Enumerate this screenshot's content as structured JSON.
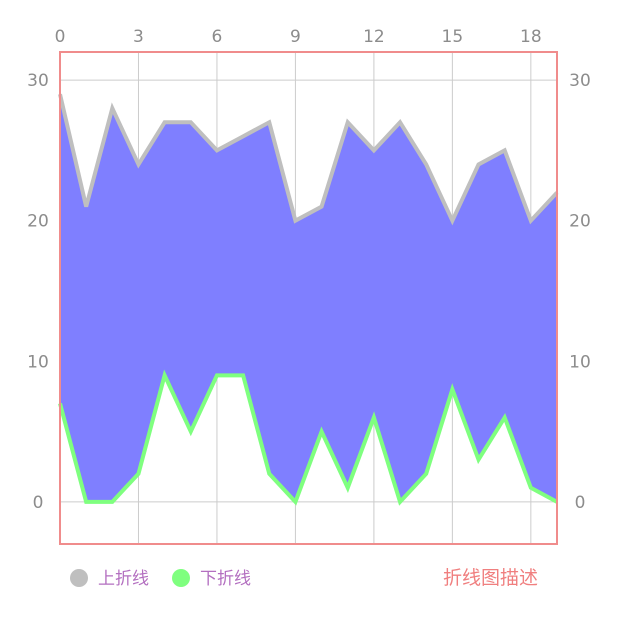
{
  "chart_data": {
    "type": "area",
    "x": [
      0,
      1,
      2,
      3,
      4,
      5,
      6,
      7,
      8,
      9,
      10,
      11,
      12,
      13,
      14,
      15,
      16,
      17,
      18,
      19
    ],
    "xlim": [
      0,
      19
    ],
    "xticks": [
      0,
      3,
      6,
      9,
      12,
      15,
      18
    ],
    "ylim": [
      -3,
      32
    ],
    "yticks": [
      0,
      10,
      20,
      30
    ],
    "grid": true,
    "fill_between_series": true,
    "series": [
      {
        "name": "上折线",
        "color": "#bfbfbf",
        "values": [
          29,
          21,
          28,
          24,
          27,
          27,
          25,
          26,
          27,
          20,
          21,
          27,
          25,
          27,
          24,
          20,
          24,
          25,
          20,
          22
        ]
      },
      {
        "name": "下折线",
        "color": "#7fff7f",
        "values": [
          7,
          0,
          0,
          2,
          9,
          5,
          9,
          9,
          2,
          0,
          5,
          1,
          6,
          0,
          2,
          8,
          3,
          6,
          1,
          0
        ]
      }
    ],
    "fill_color": "#7f7fff",
    "description": "折线图描述",
    "legend_position": "bottom-left",
    "description_position": "bottom-right"
  },
  "colors": {
    "border": "#f08c8c",
    "grid": "#cccccc",
    "tick_text": "#8c8c8c",
    "legend_text": "#b36fc0",
    "description_text": "#f07f7f"
  }
}
